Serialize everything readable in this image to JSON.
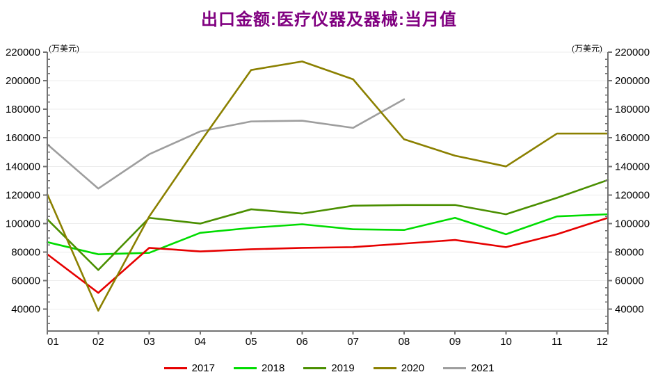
{
  "title": "出口金额:医疗仪器及器械:当月值",
  "colors": {
    "title": "#800080",
    "axis": "#737373",
    "grid": "#ececec",
    "tick_label": "#000000"
  },
  "chart_data": {
    "type": "line",
    "title": "出口金额:医疗仪器及器械:当月值",
    "categories": [
      "01",
      "02",
      "03",
      "04",
      "05",
      "06",
      "07",
      "08",
      "09",
      "10",
      "11",
      "12"
    ],
    "series": [
      {
        "name": "2017",
        "color": "#e60000",
        "values": [
          78500,
          51500,
          83000,
          80500,
          82000,
          83000,
          83500,
          86000,
          88500,
          83500,
          92500,
          104000
        ]
      },
      {
        "name": "2018",
        "color": "#00dc00",
        "values": [
          87000,
          78500,
          79500,
          93500,
          97000,
          99500,
          96000,
          95500,
          104000,
          92500,
          105000,
          106500
        ]
      },
      {
        "name": "2019",
        "color": "#4a8f00",
        "values": [
          103000,
          67500,
          104000,
          100000,
          110000,
          107000,
          112500,
          113000,
          113000,
          106500,
          118000,
          130500
        ]
      },
      {
        "name": "2020",
        "color": "#8b8000",
        "values": [
          120500,
          39000,
          105000,
          157000,
          207500,
          213500,
          201000,
          159000,
          147500,
          140000,
          163000,
          163000
        ]
      },
      {
        "name": "2021",
        "color": "#9e9e9e",
        "values": [
          155500,
          124500,
          148500,
          164500,
          171500,
          172000,
          167000,
          187000
        ]
      }
    ],
    "draw_order": [
      4,
      1,
      2,
      0,
      3
    ],
    "y_axis": {
      "unit": "(万美元)",
      "unit_right": "(万美元)",
      "ticks": [
        220000,
        200000,
        180000,
        160000,
        140000,
        120000,
        100000,
        80000,
        60000,
        40000
      ],
      "major_step": 20000,
      "minor_step": 5000,
      "max": 220000,
      "min": 24770,
      "dual": true
    },
    "x_axis": {
      "ticks": [
        "01",
        "02",
        "03",
        "04",
        "05",
        "06",
        "07",
        "08",
        "09",
        "10",
        "11",
        "12"
      ]
    },
    "grid": "horizontal",
    "legend_position": "bottom",
    "legend": [
      "2017",
      "2018",
      "2019",
      "2020",
      "2021"
    ]
  }
}
